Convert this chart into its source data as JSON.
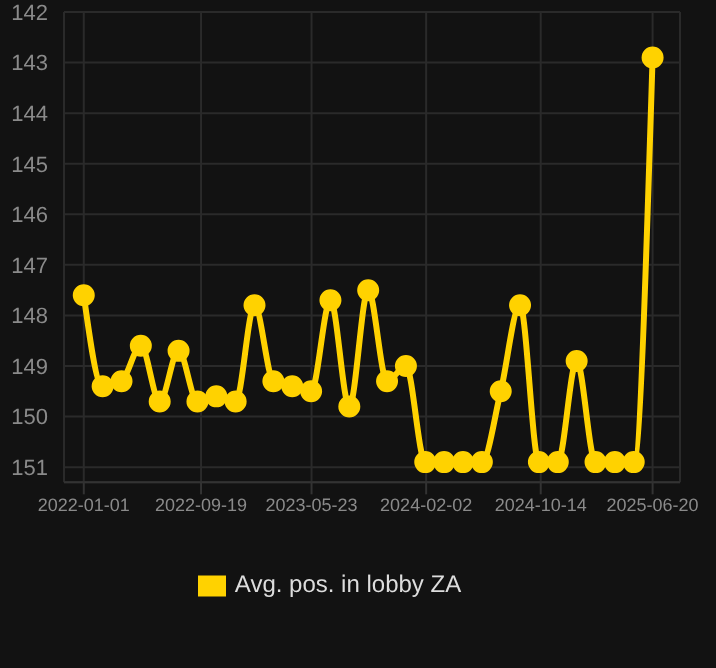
{
  "chart_data": {
    "type": "line",
    "x": [
      "2022-01-01",
      "2022-02-12",
      "2022-03-26",
      "2022-05-08",
      "2022-06-19",
      "2022-07-31",
      "2022-09-11",
      "2022-10-23",
      "2022-12-05",
      "2023-01-16",
      "2023-02-27",
      "2023-04-10",
      "2023-05-22",
      "2023-07-04",
      "2023-08-15",
      "2023-09-26",
      "2023-11-07",
      "2023-12-19",
      "2024-01-31",
      "2024-03-13",
      "2024-04-24",
      "2024-06-05",
      "2024-07-17",
      "2024-08-29",
      "2024-10-10",
      "2024-11-21",
      "2025-01-02",
      "2025-02-13",
      "2025-03-28",
      "2025-05-09",
      "2025-06-20"
    ],
    "series": [
      {
        "name": "Avg. pos. in lobby ZA",
        "color": "#ffd200",
        "values": [
          147.6,
          149.4,
          149.3,
          148.6,
          149.7,
          148.7,
          149.7,
          149.6,
          149.7,
          147.8,
          149.3,
          149.4,
          149.5,
          147.7,
          149.8,
          147.5,
          149.3,
          149.0,
          150.9,
          150.9,
          150.9,
          150.9,
          149.5,
          147.8,
          150.9,
          150.9,
          148.9,
          150.9,
          150.9,
          150.9,
          142.9
        ]
      }
    ],
    "xlim": [
      "2021-11-18",
      "2025-08-20"
    ],
    "xticks": [
      "2022-01-01",
      "2022-09-19",
      "2023-05-23",
      "2024-02-02",
      "2024-10-14",
      "2025-06-20"
    ],
    "ylim": [
      151.3,
      142
    ],
    "yticks": [
      142,
      143,
      144,
      145,
      146,
      147,
      148,
      149,
      150,
      151
    ],
    "grid": true,
    "legend": "bottom",
    "marker": "circle",
    "line_style": "solid"
  }
}
